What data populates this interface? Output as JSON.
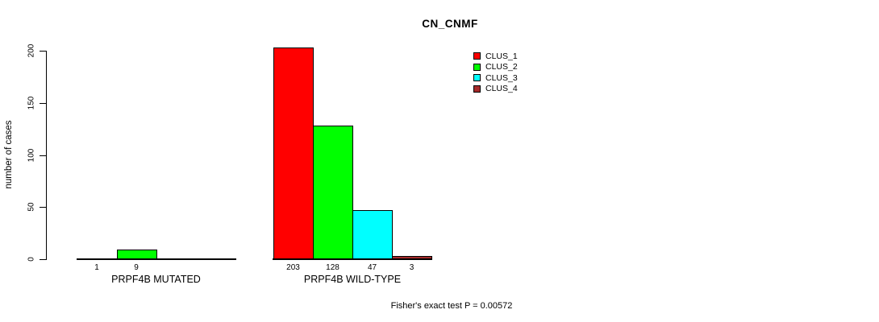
{
  "title": "CN_CNMF",
  "footnote": "Fisher's exact test P = 0.00572",
  "chart_data": {
    "type": "bar",
    "title": "CN_CNMF",
    "subtitle": "",
    "xlabel": "",
    "ylabel": "number of cases",
    "ylim": [
      0,
      200
    ],
    "yticks": [
      0,
      50,
      100,
      150,
      200
    ],
    "grid": false,
    "legend_position": "top-right",
    "bar_value_labels_shown": true,
    "categories": [
      "PRPF4B MUTATED",
      "PRPF4B WILD-TYPE"
    ],
    "series": [
      {
        "name": "CLUS_1",
        "color": "#FF0000",
        "values": [
          1,
          203
        ]
      },
      {
        "name": "CLUS_2",
        "color": "#00FF00",
        "values": [
          9,
          128
        ]
      },
      {
        "name": "CLUS_3",
        "color": "#00FFFF",
        "values": [
          0,
          47
        ]
      },
      {
        "name": "CLUS_4",
        "color": "#A52A2A",
        "values": [
          0,
          3
        ]
      }
    ],
    "annotation": "Fisher's exact test P = 0.00572"
  }
}
